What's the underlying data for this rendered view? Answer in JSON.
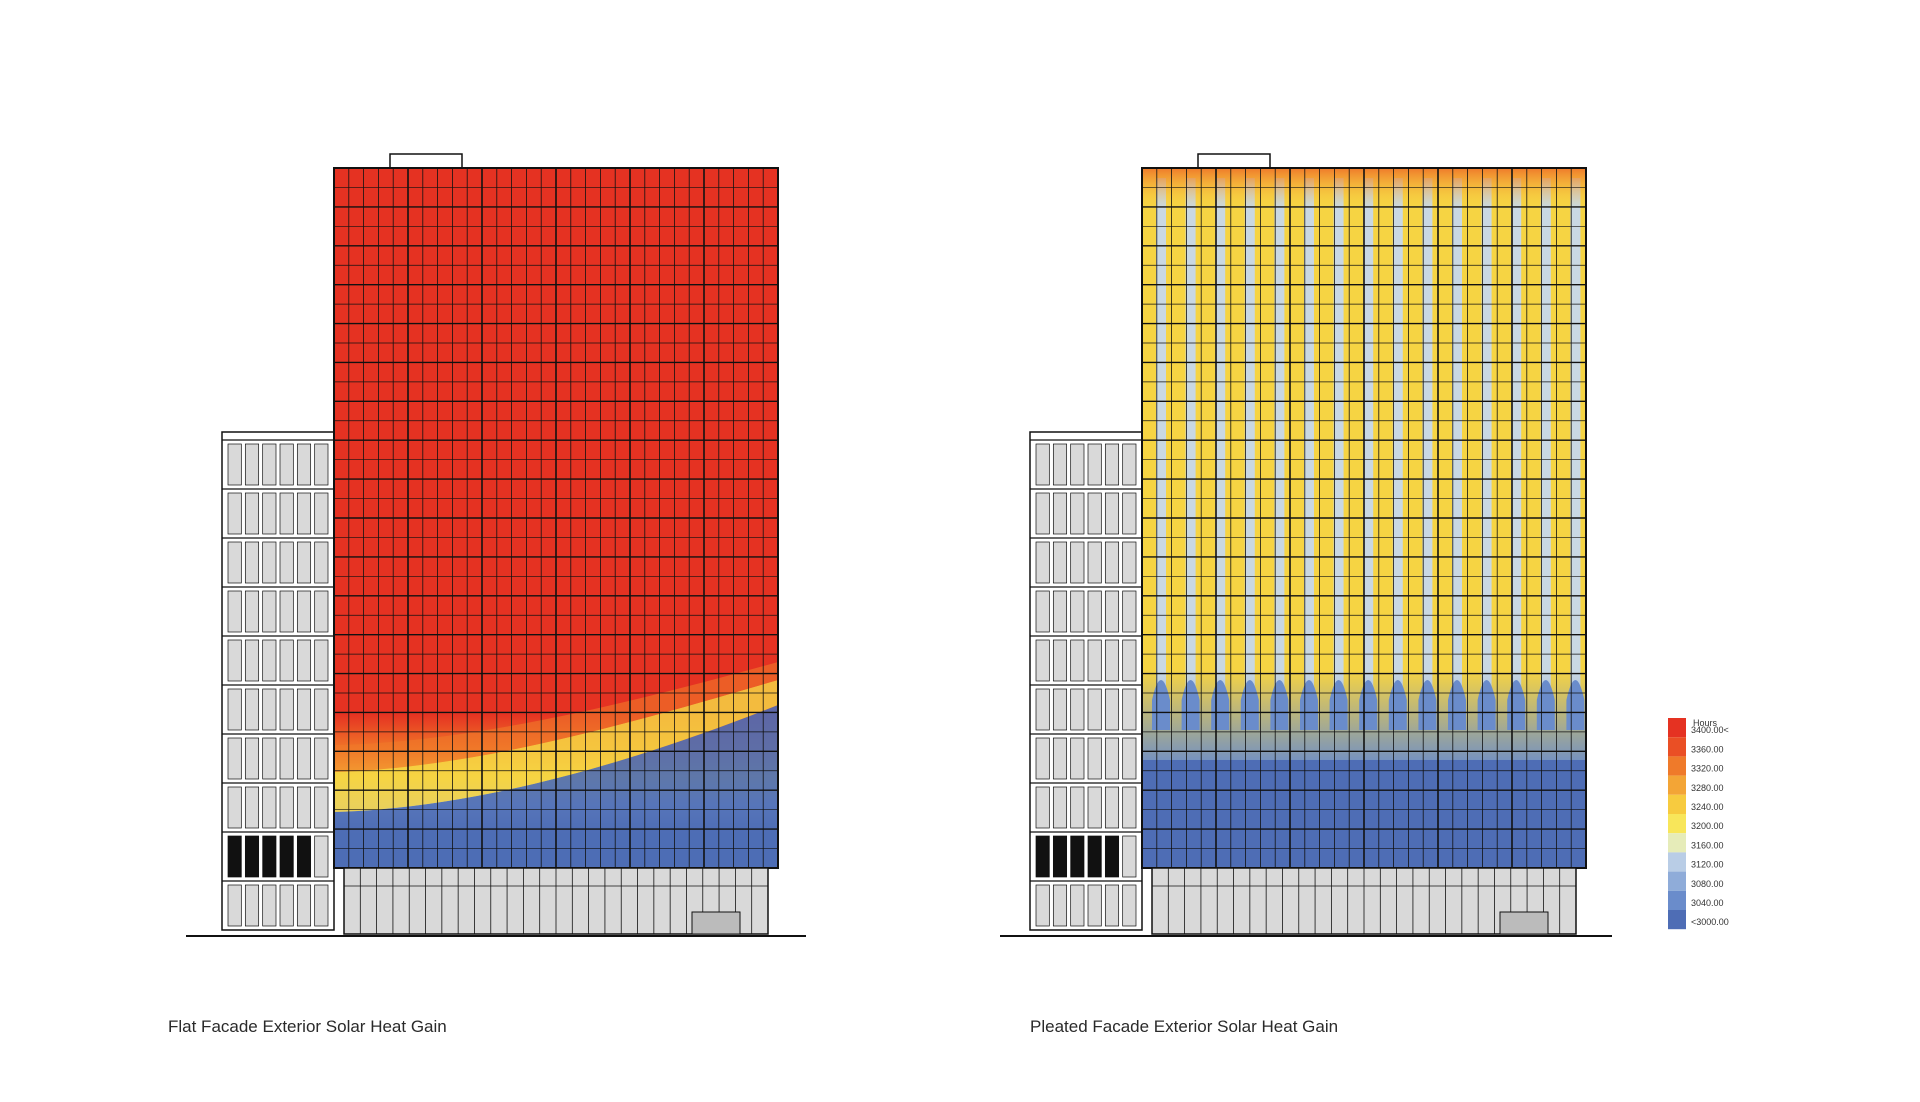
{
  "captions": {
    "left": "Flat Facade Exterior Solar Heat Gain",
    "right": "Pleated Facade Exterior Solar Heat Gain"
  },
  "legend": {
    "title": "Hours",
    "entries": [
      {
        "label": "3400.00<",
        "color": "#e53222"
      },
      {
        "label": "3360.00",
        "color": "#ea4f25"
      },
      {
        "label": "3320.00",
        "color": "#ef7a2a"
      },
      {
        "label": "3280.00",
        "color": "#f3a536"
      },
      {
        "label": "3240.00",
        "color": "#f7cb3f"
      },
      {
        "label": "3200.00",
        "color": "#f8e65a"
      },
      {
        "label": "3160.00",
        "color": "#e6ecb9"
      },
      {
        "label": "3120.00",
        "color": "#b9cde6"
      },
      {
        "label": "3080.00",
        "color": "#8facd9"
      },
      {
        "label": "3040.00",
        "color": "#6a8ccb"
      },
      {
        "label": "<3000.00",
        "color": "#4e6db5"
      }
    ]
  },
  "colors": {
    "hot_red": "#e53222",
    "warm_yellow": "#f6d443",
    "pale_blue": "#c9d8e3",
    "cool_blue": "#4c6cb4",
    "line": "#111111",
    "glass_grey": "#d9d9d9"
  }
}
